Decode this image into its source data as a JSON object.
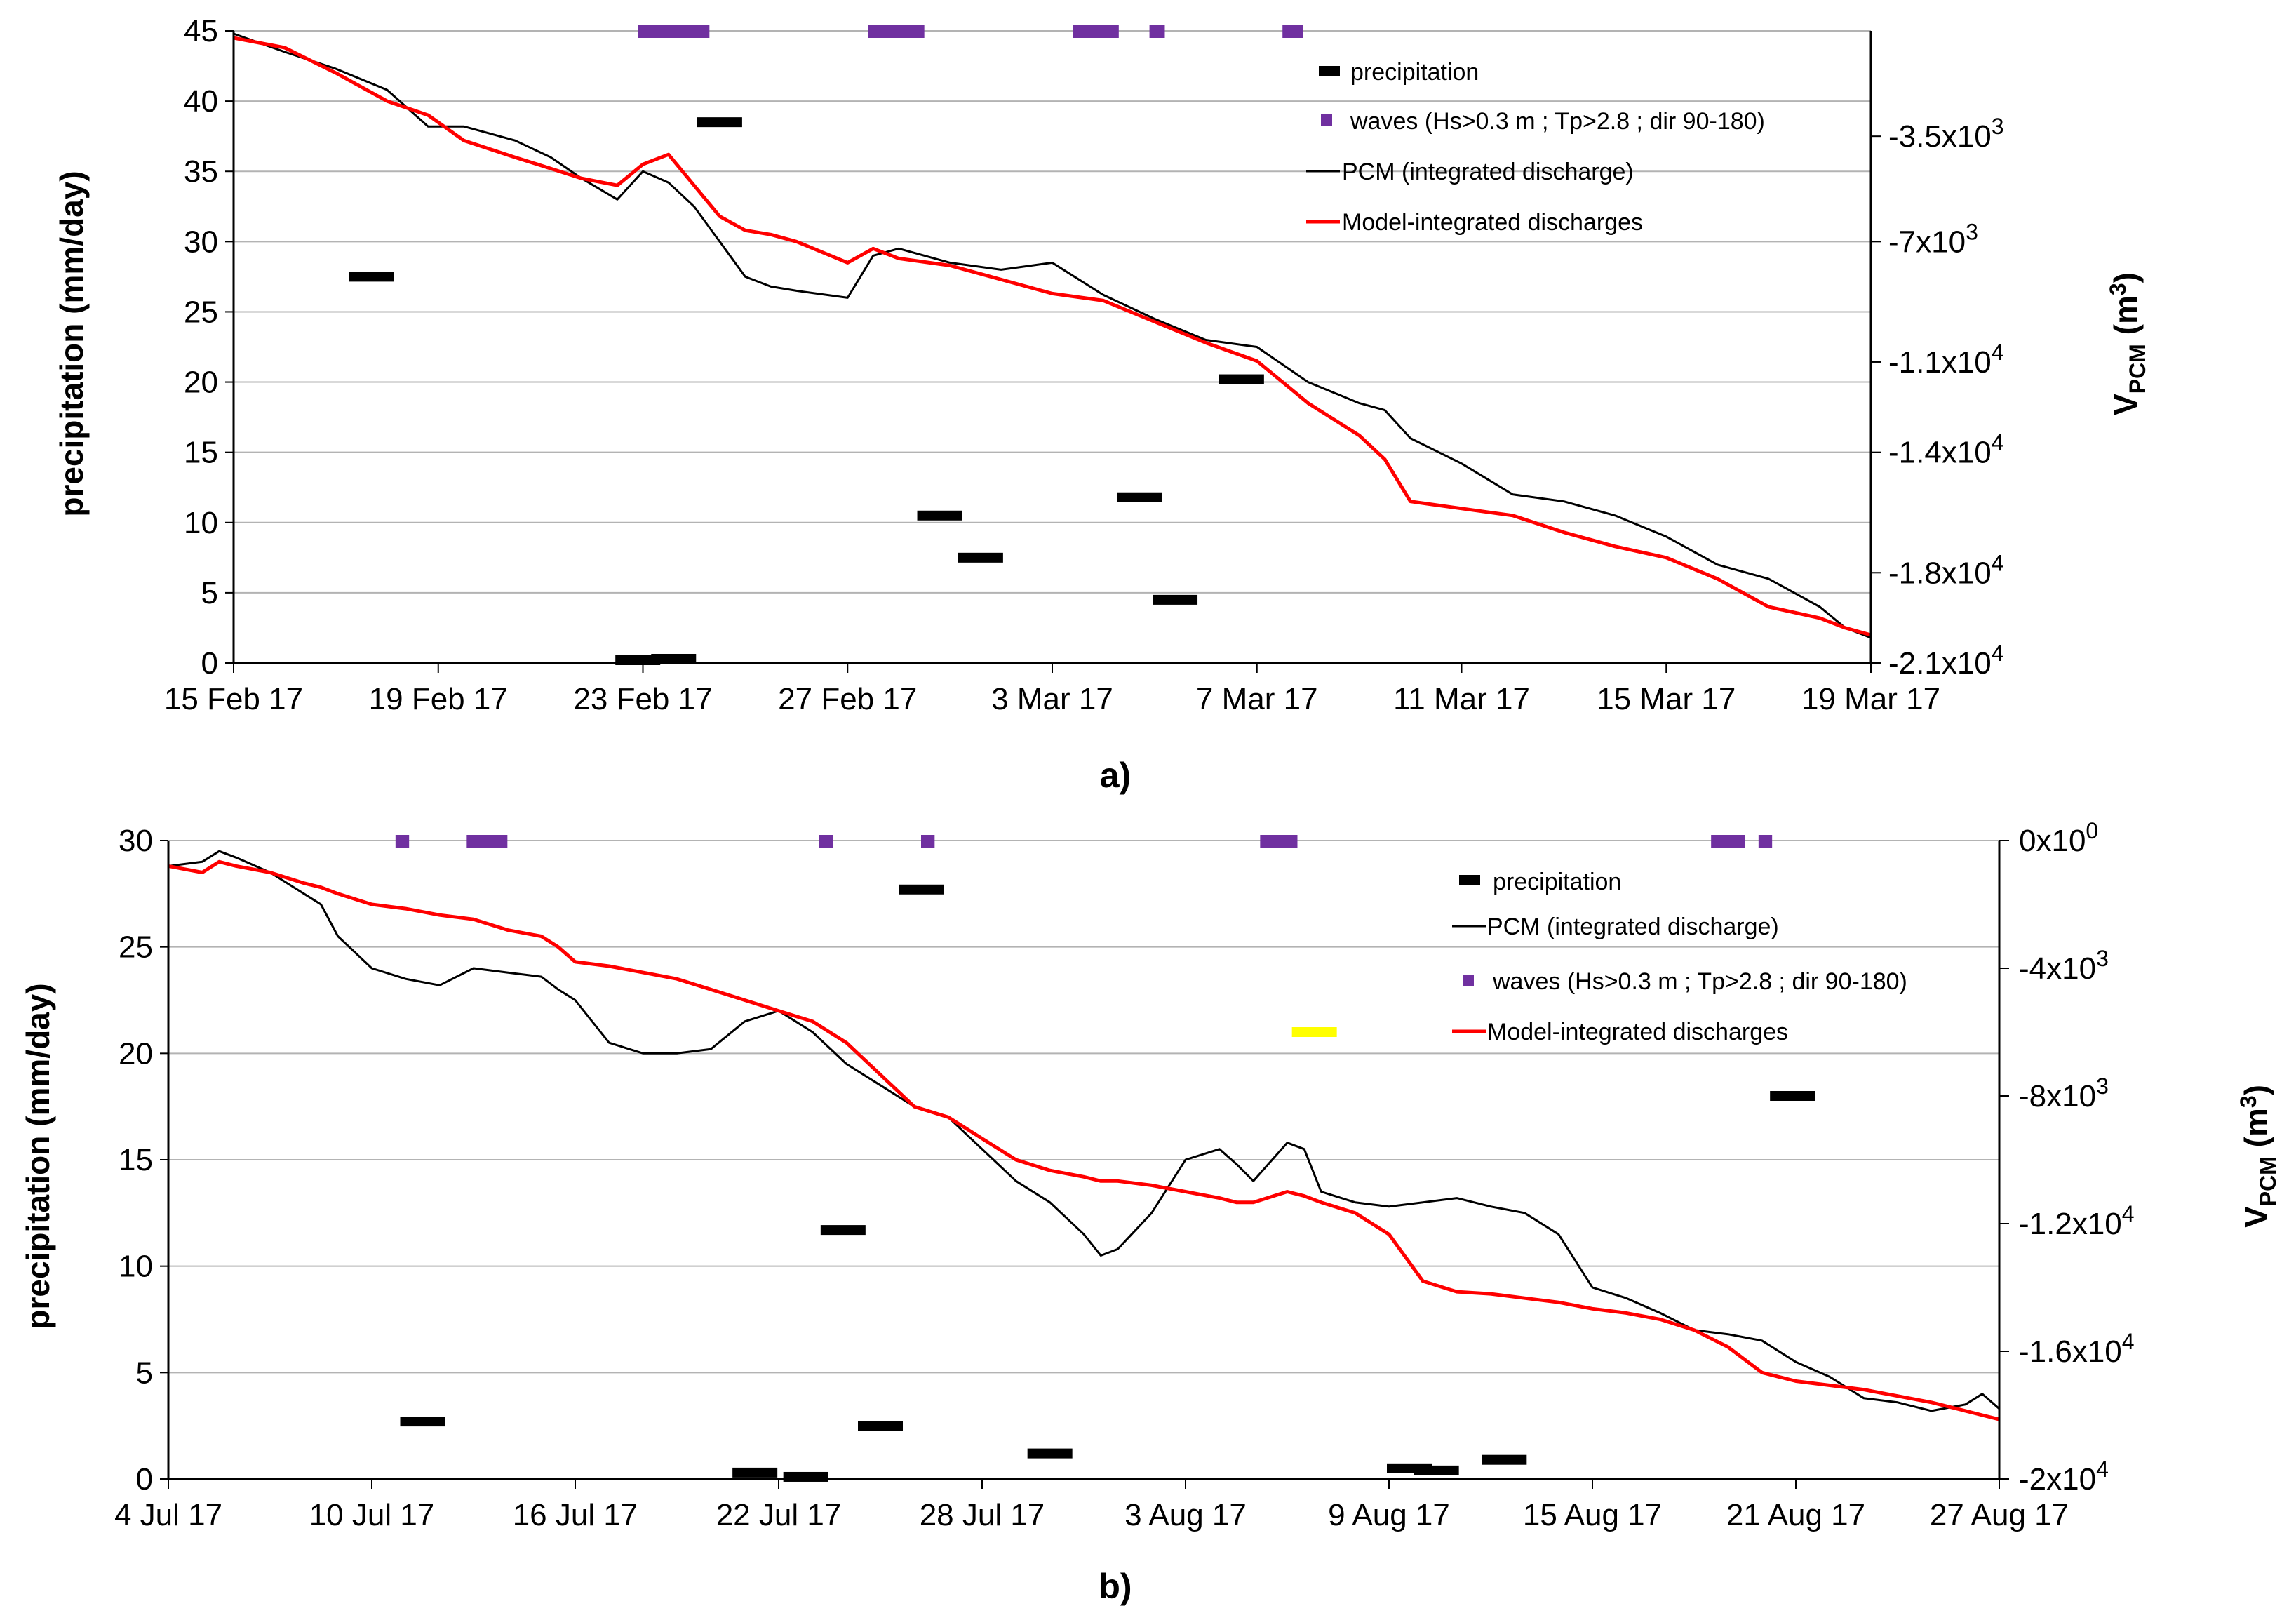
{
  "chart_data": [
    {
      "type": "line",
      "panel_label": "a)",
      "ylabel_left": "precipitation (mm/day)",
      "ylabel_right_main": "V",
      "ylabel_right_sub": "PCM",
      "ylabel_right_unit": " (m",
      "ylabel_right_unit_sup": "3",
      "ylabel_right_close": ")",
      "ylim_left": [
        0,
        45
      ],
      "left_ticks": [
        "0",
        "5",
        "10",
        "15",
        "20",
        "25",
        "30",
        "35",
        "40",
        "45"
      ],
      "right_ticks": [
        {
          "label": "-2.1x10",
          "exp": "4",
          "value": -21000
        },
        {
          "label": "-1.8x10",
          "exp": "4",
          "value": -18000
        },
        {
          "label": "-1.4x10",
          "exp": "4",
          "value": -14000
        },
        {
          "label": "-1.1x10",
          "exp": "4",
          "value": -11000
        },
        {
          "label": "-7x10",
          "exp": "3",
          "value": -7000
        },
        {
          "label": "-3.5x10",
          "exp": "3",
          "value": -3500
        }
      ],
      "ylim_right": [
        -21000,
        0
      ],
      "x_days_total": 32,
      "x_ticks": [
        {
          "day": 0,
          "label": "15 Feb 17"
        },
        {
          "day": 4,
          "label": "19 Feb 17"
        },
        {
          "day": 8,
          "label": "23 Feb 17"
        },
        {
          "day": 12,
          "label": "27 Feb 17"
        },
        {
          "day": 16,
          "label": "3 Mar 17"
        },
        {
          "day": 20,
          "label": "7 Mar 17"
        },
        {
          "day": 24,
          "label": "11 Mar 17"
        },
        {
          "day": 28,
          "label": "15 Mar 17"
        },
        {
          "day": 32,
          "label": "19 Mar 17"
        }
      ],
      "legend": [
        {
          "key": "precipitation",
          "label": "precipitation"
        },
        {
          "key": "waves",
          "label": "waves (Hs>0.3 m ; Tp>2.8 ; dir 90-180)"
        },
        {
          "key": "pcm",
          "label": "PCM (integrated discharge)"
        },
        {
          "key": "model",
          "label": "Model-integrated discharges"
        }
      ],
      "legend_position": "top-right",
      "precipitation": [
        {
          "day": 2.7,
          "value": 27.5
        },
        {
          "day": 7.9,
          "value": 0.2
        },
        {
          "day": 8.6,
          "value": 0.3
        },
        {
          "day": 9.5,
          "value": 38.5
        },
        {
          "day": 13.8,
          "value": 10.5
        },
        {
          "day": 14.6,
          "value": 7.5
        },
        {
          "day": 17.7,
          "value": 11.8
        },
        {
          "day": 18.4,
          "value": 4.5
        },
        {
          "day": 19.7,
          "value": 20.2
        }
      ],
      "waves": [
        {
          "start": 7.9,
          "end": 9.3
        },
        {
          "start": 12.4,
          "end": 13.5
        },
        {
          "start": 16.4,
          "end": 17.3
        },
        {
          "start": 17.9,
          "end": 18.2
        },
        {
          "start": 20.5,
          "end": 20.9
        }
      ],
      "series": [
        {
          "name": "PCM (integrated discharge)",
          "color": "#000000",
          "x": [
            0,
            1,
            2,
            3,
            3.8,
            4.5,
            5.5,
            6.2,
            6.8,
            7.5,
            8.0,
            8.5,
            9.0,
            9.5,
            10.0,
            10.5,
            11.0,
            12.0,
            12.5,
            13.0,
            14.0,
            15.0,
            16.0,
            17.0,
            18.0,
            19.0,
            20.0,
            21.0,
            22.0,
            22.5,
            23.0,
            24.0,
            25.0,
            26.0,
            27.0,
            28.0,
            29.0,
            30.0,
            31.0,
            31.5,
            32.0
          ],
          "values": [
            44.8,
            43.5,
            42.3,
            40.8,
            38.2,
            38.2,
            37.2,
            36.0,
            34.5,
            33.0,
            35.0,
            34.2,
            32.5,
            30.0,
            27.5,
            26.8,
            26.5,
            26.0,
            29.0,
            29.5,
            28.5,
            28.0,
            28.5,
            26.2,
            24.5,
            23.0,
            22.5,
            20.0,
            18.5,
            18.0,
            16.0,
            14.2,
            12.0,
            11.5,
            10.5,
            9.0,
            7.0,
            6.0,
            4.0,
            2.5,
            1.8
          ]
        },
        {
          "name": "Model-integrated discharges",
          "color": "#ff0000",
          "x": [
            0,
            1,
            2,
            3,
            3.8,
            4.5,
            5.5,
            6.2,
            6.8,
            7.5,
            8.0,
            8.5,
            9.0,
            9.5,
            10.0,
            10.5,
            11.0,
            12.0,
            12.5,
            13.0,
            14.0,
            15.0,
            16.0,
            17.0,
            18.0,
            19.0,
            20.0,
            21.0,
            22.0,
            22.5,
            23.0,
            24.0,
            25.0,
            26.0,
            27.0,
            28.0,
            29.0,
            30.0,
            31.0,
            31.5,
            32.0
          ],
          "values": [
            44.5,
            43.8,
            42.0,
            40.0,
            39.0,
            37.2,
            36.0,
            35.2,
            34.5,
            34.0,
            35.5,
            36.2,
            34.0,
            31.8,
            30.8,
            30.5,
            30.0,
            28.5,
            29.5,
            28.8,
            28.3,
            27.3,
            26.3,
            25.8,
            24.3,
            22.8,
            21.5,
            18.5,
            16.2,
            14.5,
            11.5,
            11.0,
            10.5,
            9.3,
            8.3,
            7.5,
            6.0,
            4.0,
            3.2,
            2.5,
            2.0
          ]
        }
      ]
    },
    {
      "type": "line",
      "panel_label": "b)",
      "ylabel_left": "precipitation (mm/day)",
      "ylabel_right_main": "V",
      "ylabel_right_sub": "PCM",
      "ylabel_right_unit": " (m",
      "ylabel_right_unit_sup": "3",
      "ylabel_right_close": ")",
      "ylim_left": [
        0,
        30
      ],
      "left_ticks": [
        "0",
        "5",
        "10",
        "15",
        "20",
        "25",
        "30"
      ],
      "right_ticks": [
        {
          "label": "-2x10",
          "exp": "4",
          "value": -20000
        },
        {
          "label": "-1.6x10",
          "exp": "4",
          "value": -16000
        },
        {
          "label": "-1.2x10",
          "exp": "4",
          "value": -12000
        },
        {
          "label": "-8x10",
          "exp": "3",
          "value": -8000
        },
        {
          "label": "-4x10",
          "exp": "3",
          "value": -4000
        },
        {
          "label": "0x10",
          "exp": "0",
          "value": 0
        }
      ],
      "ylim_right": [
        -20000,
        0
      ],
      "x_days_total": 54,
      "x_ticks": [
        {
          "day": 0,
          "label": "4 Jul 17"
        },
        {
          "day": 6,
          "label": "10 Jul 17"
        },
        {
          "day": 12,
          "label": "16 Jul 17"
        },
        {
          "day": 18,
          "label": "22 Jul 17"
        },
        {
          "day": 24,
          "label": "28 Jul 17"
        },
        {
          "day": 30,
          "label": "3 Aug 17"
        },
        {
          "day": 36,
          "label": "9 Aug 17"
        },
        {
          "day": 42,
          "label": "15 Aug 17"
        },
        {
          "day": 48,
          "label": "21 Aug 17"
        },
        {
          "day": 54,
          "label": "27 Aug 17"
        }
      ],
      "legend": [
        {
          "key": "precipitation",
          "label": "precipitation"
        },
        {
          "key": "pcm",
          "label": "PCM (integrated discharge)"
        },
        {
          "key": "waves",
          "label": "waves (Hs>0.3 m ; Tp>2.8 ; dir 90-180)"
        },
        {
          "key": "model",
          "label": "Model-integrated discharges"
        }
      ],
      "legend_position": "top-right",
      "precipitation": [
        {
          "day": 7.5,
          "value": 2.7,
          "color": "#000000"
        },
        {
          "day": 17.3,
          "value": 0.3,
          "color": "#000000"
        },
        {
          "day": 18.8,
          "value": 0.1,
          "color": "#000000"
        },
        {
          "day": 19.9,
          "value": 11.7,
          "color": "#000000"
        },
        {
          "day": 21.0,
          "value": 2.5,
          "color": "#000000"
        },
        {
          "day": 22.2,
          "value": 27.7,
          "color": "#000000"
        },
        {
          "day": 26.0,
          "value": 1.2,
          "color": "#000000"
        },
        {
          "day": 33.8,
          "value": 21.0,
          "color": "#ffff00"
        },
        {
          "day": 36.6,
          "value": 0.5,
          "color": "#000000"
        },
        {
          "day": 37.4,
          "value": 0.4,
          "color": "#000000"
        },
        {
          "day": 39.4,
          "value": 0.9,
          "color": "#000000"
        },
        {
          "day": 47.9,
          "value": 18.0,
          "color": "#000000"
        }
      ],
      "waves": [
        {
          "start": 6.7,
          "end": 7.1
        },
        {
          "start": 8.8,
          "end": 10.0
        },
        {
          "start": 19.2,
          "end": 19.6
        },
        {
          "start": 22.2,
          "end": 22.6
        },
        {
          "start": 32.2,
          "end": 33.3
        },
        {
          "start": 45.5,
          "end": 46.5
        },
        {
          "start": 46.9,
          "end": 47.3
        }
      ],
      "series": [
        {
          "name": "PCM (integrated discharge)",
          "color": "#000000",
          "x": [
            0,
            1,
            1.5,
            2,
            3,
            4,
            4.5,
            5,
            6,
            7,
            8,
            9,
            10,
            11,
            11.5,
            12,
            13,
            14,
            15,
            16,
            17,
            18,
            19,
            20,
            21,
            22,
            23,
            24,
            25,
            26,
            27,
            27.5,
            28,
            29,
            30,
            31,
            31.5,
            32,
            33,
            33.5,
            34,
            35,
            36,
            37,
            38,
            39,
            40,
            41,
            42,
            43,
            44,
            45,
            46,
            47,
            47.5,
            48,
            49,
            50,
            51,
            52,
            53,
            53.5,
            54
          ],
          "values": [
            28.8,
            29.0,
            29.5,
            29.2,
            28.5,
            27.5,
            27.0,
            25.5,
            24.0,
            23.5,
            23.2,
            24.0,
            23.8,
            23.6,
            23.0,
            22.5,
            20.5,
            20.0,
            20.0,
            20.2,
            21.5,
            22.0,
            21.0,
            19.5,
            18.5,
            17.5,
            17.0,
            15.5,
            14.0,
            13.0,
            11.5,
            10.5,
            10.8,
            12.5,
            15.0,
            15.5,
            14.8,
            14.0,
            15.8,
            15.5,
            13.5,
            13.0,
            12.8,
            13.0,
            13.2,
            12.8,
            12.5,
            11.5,
            9.0,
            8.5,
            7.8,
            7.0,
            6.8,
            6.5,
            6.0,
            5.5,
            4.8,
            3.8,
            3.6,
            3.2,
            3.5,
            4.0,
            3.3
          ]
        },
        {
          "name": "Model-integrated discharges",
          "color": "#ff0000",
          "x": [
            0,
            1,
            1.5,
            2,
            3,
            4,
            4.5,
            5,
            6,
            7,
            8,
            9,
            10,
            11,
            11.5,
            12,
            13,
            14,
            15,
            16,
            17,
            18,
            19,
            20,
            21,
            22,
            23,
            24,
            25,
            26,
            27,
            27.5,
            28,
            29,
            30,
            31,
            31.5,
            32,
            33,
            33.5,
            34,
            35,
            36,
            37,
            38,
            39,
            40,
            41,
            42,
            43,
            44,
            45,
            46,
            47,
            47.5,
            48,
            49,
            50,
            51,
            52,
            53,
            53.5,
            54
          ],
          "values": [
            28.8,
            28.5,
            29.0,
            28.8,
            28.5,
            28.0,
            27.8,
            27.5,
            27.0,
            26.8,
            26.5,
            26.3,
            25.8,
            25.5,
            25.0,
            24.3,
            24.1,
            23.8,
            23.5,
            23.0,
            22.5,
            22.0,
            21.5,
            20.5,
            19.0,
            17.5,
            17.0,
            16.0,
            15.0,
            14.5,
            14.2,
            14.0,
            14.0,
            13.8,
            13.5,
            13.2,
            13.0,
            13.0,
            13.5,
            13.3,
            13.0,
            12.5,
            11.5,
            9.3,
            8.8,
            8.7,
            8.5,
            8.3,
            8.0,
            7.8,
            7.5,
            7.0,
            6.2,
            5.0,
            4.8,
            4.6,
            4.4,
            4.2,
            3.9,
            3.6,
            3.2,
            3.0,
            2.8
          ]
        }
      ]
    }
  ]
}
